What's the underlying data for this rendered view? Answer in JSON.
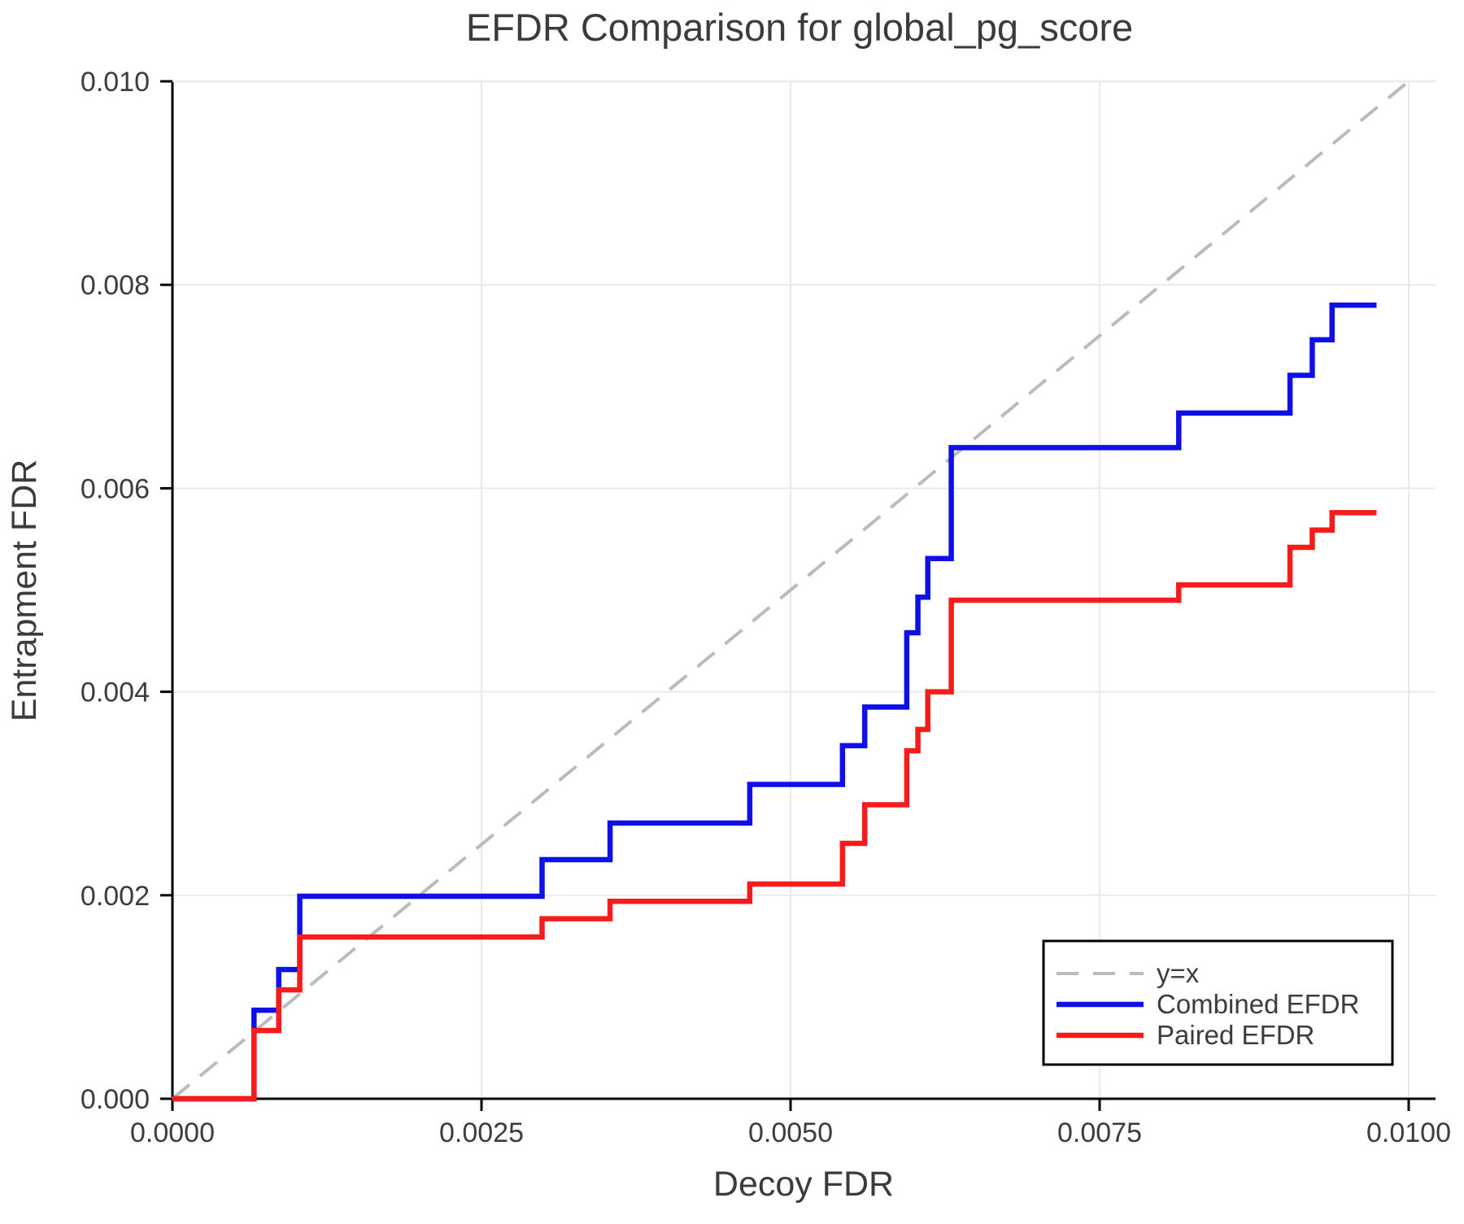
{
  "chart_data": {
    "type": "line",
    "subtype": "step-post",
    "title": "EFDR Comparison for global_pg_score",
    "xlabel": "Decoy FDR",
    "ylabel": "Entrapment FDR",
    "xlim": [
      0,
      0.01022
    ],
    "ylim": [
      0,
      0.01
    ],
    "grid": true,
    "x_ticks": [
      0.0,
      0.0025,
      0.005,
      0.0075,
      0.01
    ],
    "x_tick_labels": [
      "0.0000",
      "0.0025",
      "0.0050",
      "0.0075",
      "0.0100"
    ],
    "y_ticks": [
      0.0,
      0.002,
      0.004,
      0.006,
      0.008,
      0.01
    ],
    "y_tick_labels": [
      "0.000",
      "0.002",
      "0.004",
      "0.006",
      "0.008",
      "0.010"
    ],
    "reference_line": {
      "label": "y=x",
      "from": [
        0,
        0
      ],
      "to": [
        0.01,
        0.01
      ],
      "color": "#bbbbbb",
      "style": "dashed"
    },
    "series": [
      {
        "name": "Combined EFDR",
        "color": "#0f0fe8",
        "x_end": 0.00974,
        "step_points": [
          [
            0,
            0
          ],
          [
            0.00066,
            0.00087
          ],
          [
            0.00086,
            0.00127
          ],
          [
            0.00103,
            0.00199
          ],
          [
            0.00299,
            0.00235
          ],
          [
            0.00354,
            0.00271
          ],
          [
            0.00467,
            0.00309
          ],
          [
            0.00542,
            0.00347
          ],
          [
            0.0056,
            0.00385
          ],
          [
            0.00594,
            0.00458
          ],
          [
            0.00603,
            0.00493
          ],
          [
            0.00611,
            0.00531
          ],
          [
            0.0063,
            0.0064
          ],
          [
            0.00814,
            0.00674
          ],
          [
            0.00904,
            0.00711
          ],
          [
            0.00922,
            0.00746
          ],
          [
            0.00938,
            0.0078
          ]
        ]
      },
      {
        "name": "Paired EFDR",
        "color": "#f71b1b",
        "x_end": 0.00974,
        "step_points": [
          [
            0,
            0
          ],
          [
            0.00066,
            0.00067
          ],
          [
            0.00086,
            0.00107
          ],
          [
            0.00103,
            0.00159
          ],
          [
            0.00299,
            0.00177
          ],
          [
            0.00354,
            0.00194
          ],
          [
            0.00467,
            0.00211
          ],
          [
            0.00542,
            0.00251
          ],
          [
            0.0056,
            0.00289
          ],
          [
            0.00594,
            0.00342
          ],
          [
            0.00603,
            0.00363
          ],
          [
            0.00611,
            0.004
          ],
          [
            0.0063,
            0.0049
          ],
          [
            0.00814,
            0.00505
          ],
          [
            0.00904,
            0.00542
          ],
          [
            0.00922,
            0.00559
          ],
          [
            0.00938,
            0.00576
          ]
        ]
      }
    ],
    "legend": {
      "position": "lower right",
      "entries": [
        {
          "label": "y=x",
          "color": "#bbbbbb",
          "style": "dashed"
        },
        {
          "label": "Combined EFDR",
          "color": "#0f0fe8",
          "style": "solid"
        },
        {
          "label": "Paired EFDR",
          "color": "#f71b1b",
          "style": "solid"
        }
      ]
    }
  },
  "colors": {
    "background": "#ffffff",
    "grid": "#e9e9e9",
    "spine": "#000000",
    "text": "#3c3c3c",
    "combined_efdr": "#0f0fe8",
    "paired_efdr": "#f71b1b",
    "reference": "#bbbbbb"
  }
}
